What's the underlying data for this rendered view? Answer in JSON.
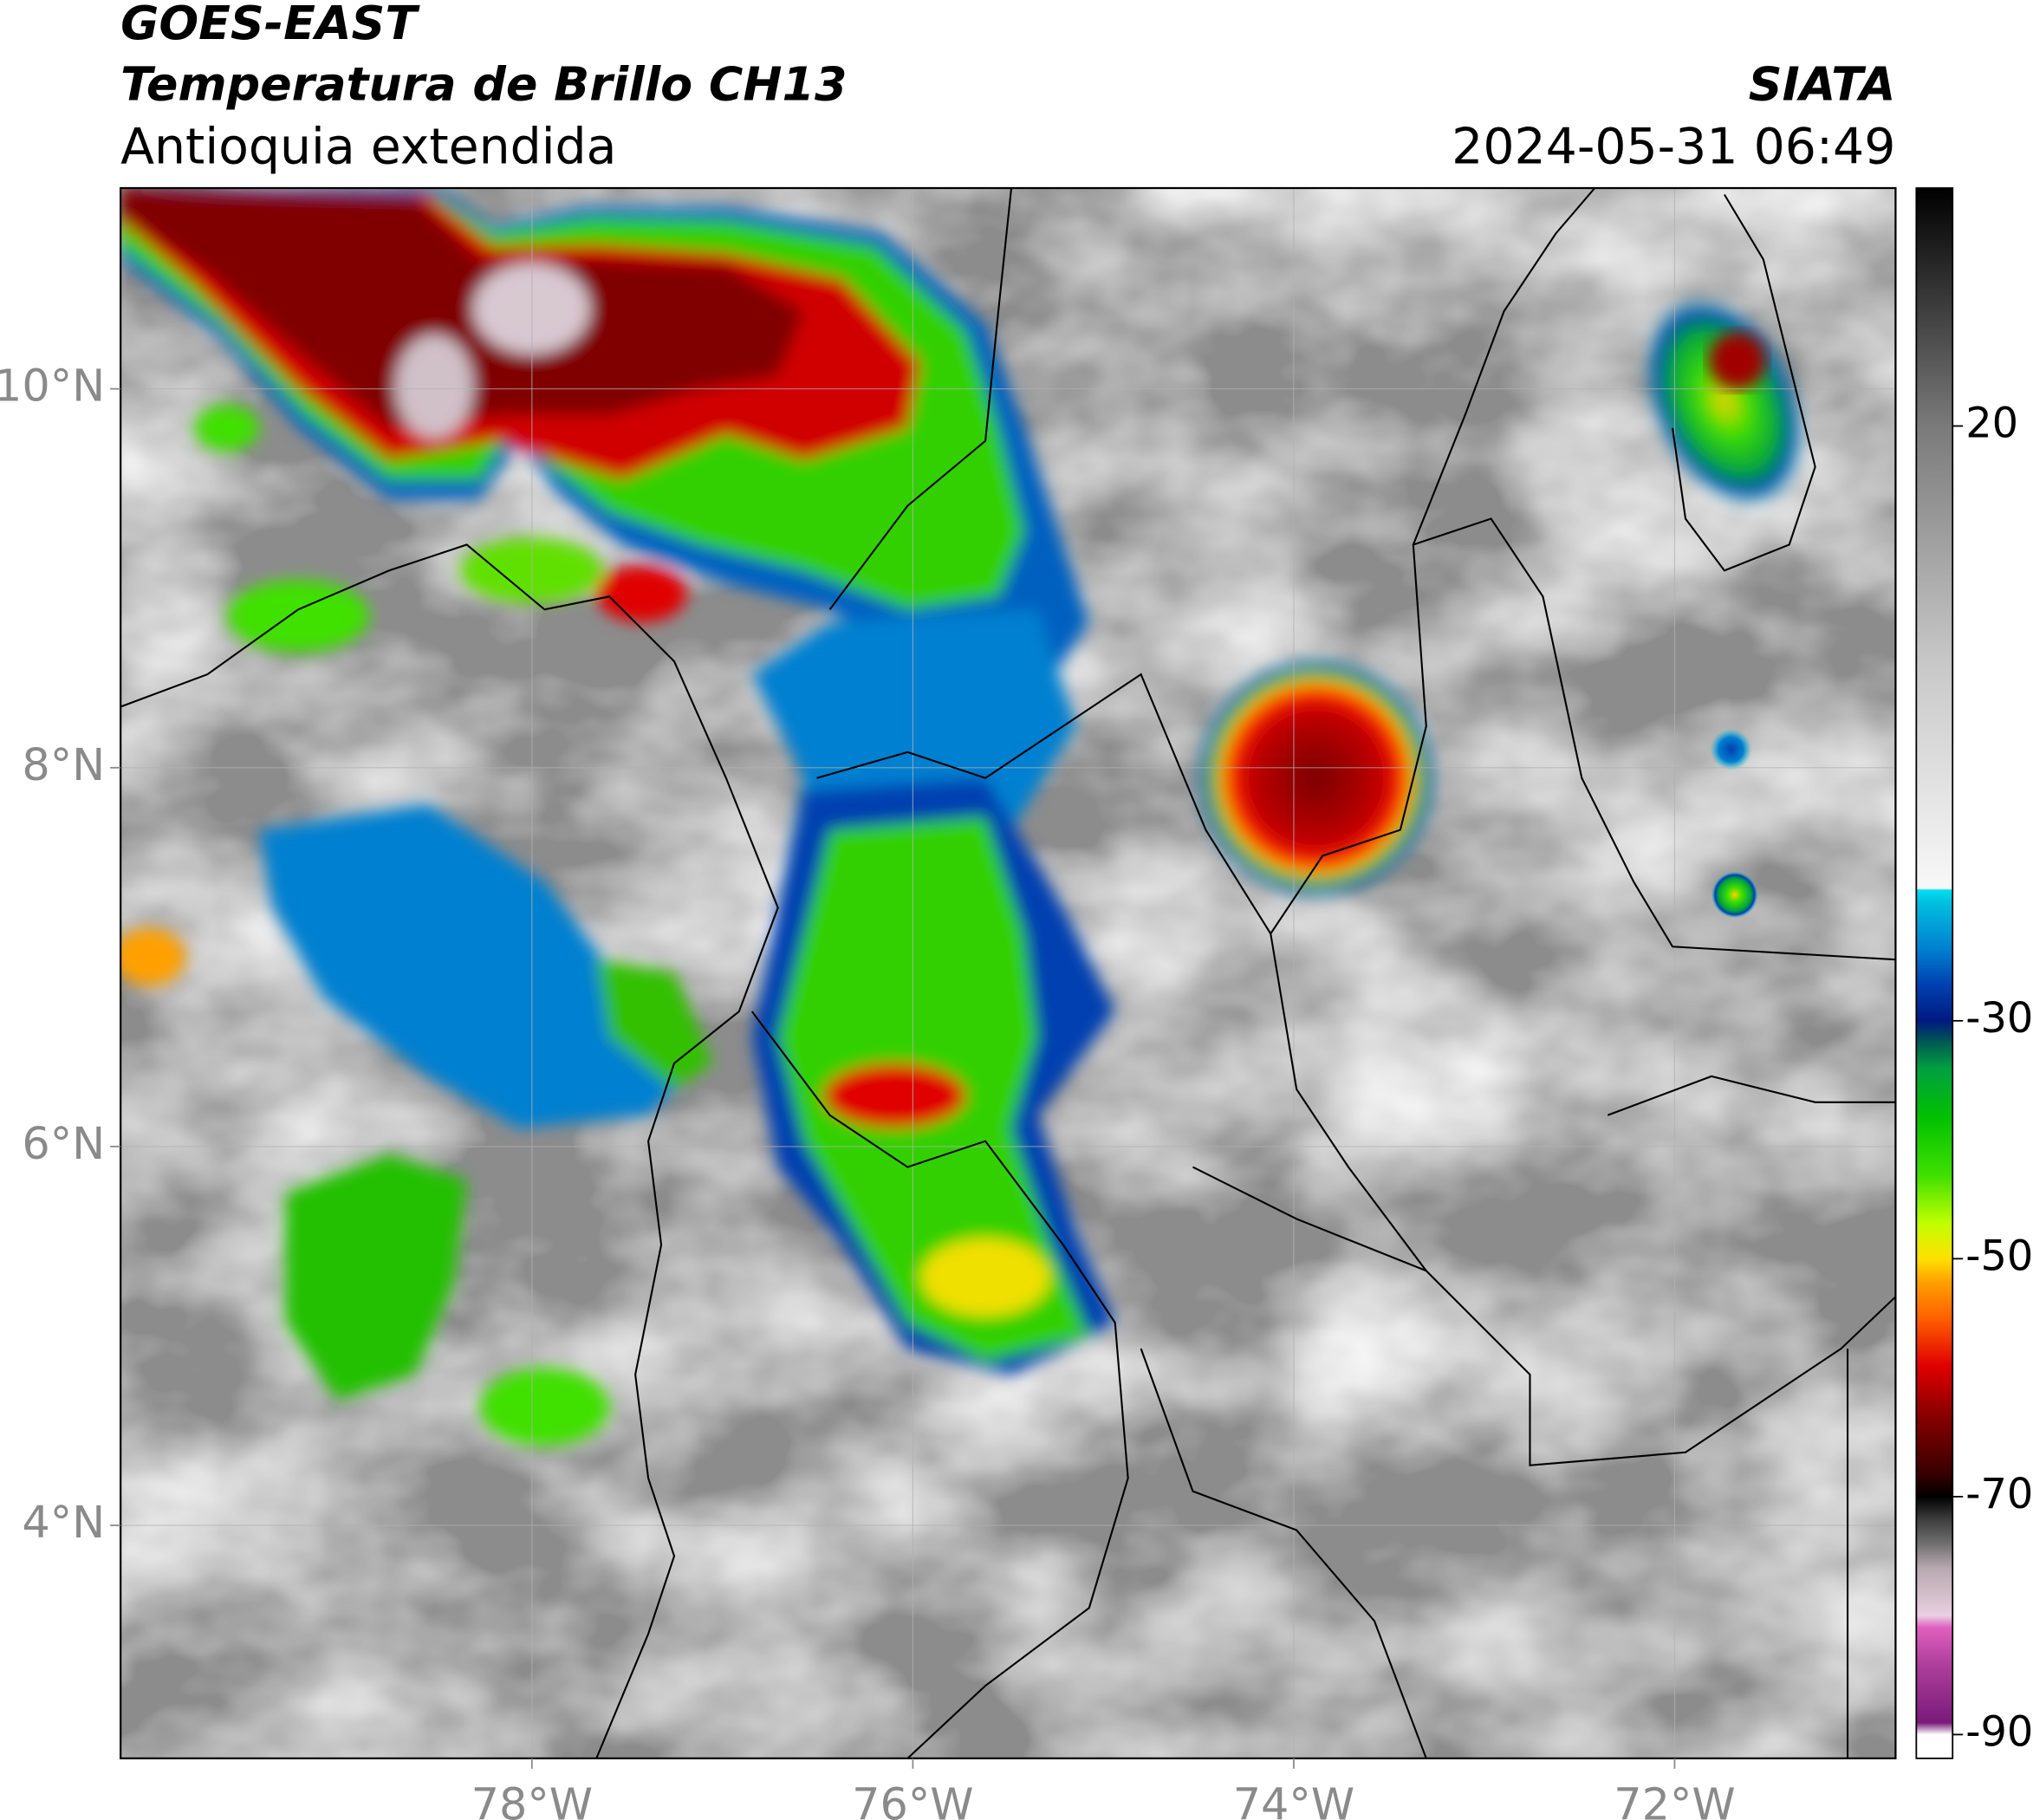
{
  "header": {
    "title": "GOES-EAST",
    "subtitle": "Temperatura de Brillo CH13",
    "region": "Antioquia extendida",
    "source": "SIATA",
    "datetime": "2024-05-31 06:49"
  },
  "map": {
    "xlim": [
      -80.16,
      -70.84
    ],
    "ylim": [
      2.77,
      11.06
    ],
    "xticks": [
      {
        "value": -78,
        "label": "78°W"
      },
      {
        "value": -76,
        "label": "76°W"
      },
      {
        "value": -74,
        "label": "74°W"
      },
      {
        "value": -72,
        "label": "72°W"
      }
    ],
    "yticks": [
      {
        "value": 4,
        "label": "4°N"
      },
      {
        "value": 6,
        "label": "6°N"
      },
      {
        "value": 8,
        "label": "8°N"
      },
      {
        "value": 10,
        "label": "10°N"
      }
    ],
    "grid": true
  },
  "colorbar": {
    "lim": [
      -92,
      40
    ],
    "ticks": [
      -90,
      -70,
      -50,
      -30,
      20
    ],
    "stops": [
      {
        "value": -92,
        "color": "#ffffff"
      },
      {
        "value": -90,
        "color": "#ffffff"
      },
      {
        "value": -89,
        "color": "#7a1a7a"
      },
      {
        "value": -84,
        "color": "#b0409c"
      },
      {
        "value": -81,
        "color": "#e060c0"
      },
      {
        "value": -80,
        "color": "#e8d0e0"
      },
      {
        "value": -76,
        "color": "#b8a8b0"
      },
      {
        "value": -74,
        "color": "#707070"
      },
      {
        "value": -72,
        "color": "#404040"
      },
      {
        "value": -70,
        "color": "#000000"
      },
      {
        "value": -68,
        "color": "#3a0000"
      },
      {
        "value": -63,
        "color": "#8b0000"
      },
      {
        "value": -59,
        "color": "#e00000"
      },
      {
        "value": -55,
        "color": "#ff6000"
      },
      {
        "value": -52,
        "color": "#ffa000"
      },
      {
        "value": -50,
        "color": "#ffe000"
      },
      {
        "value": -47,
        "color": "#c0ff00"
      },
      {
        "value": -43,
        "color": "#40e000"
      },
      {
        "value": -38,
        "color": "#00c000"
      },
      {
        "value": -34,
        "color": "#00a040"
      },
      {
        "value": -32,
        "color": "#006050"
      },
      {
        "value": -30,
        "color": "#001a80"
      },
      {
        "value": -27,
        "color": "#0040b0"
      },
      {
        "value": -24,
        "color": "#0080d0"
      },
      {
        "value": -20,
        "color": "#00c0e0"
      },
      {
        "value": -19,
        "color": "#00e0f0"
      },
      {
        "value": -18.9,
        "color": "#f8f8f8"
      },
      {
        "value": 0,
        "color": "#c8c8c8"
      },
      {
        "value": 20,
        "color": "#7a7a7a"
      },
      {
        "value": 40,
        "color": "#000000"
      }
    ]
  }
}
